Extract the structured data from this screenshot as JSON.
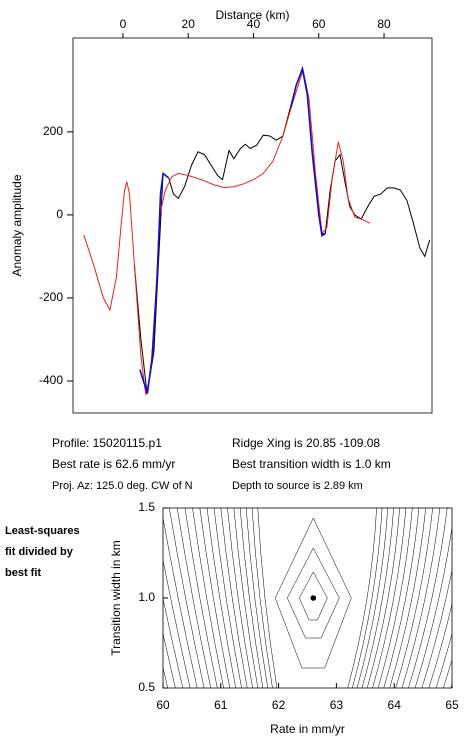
{
  "chart_data": [
    {
      "type": "line",
      "xlabel": "Distance (km)",
      "ylabel": "Anomaly amplitude",
      "xlim": [
        -15.3,
        94.7
      ],
      "ylim": [
        -477,
        426
      ],
      "xticks": [
        0,
        20,
        40,
        60,
        80
      ],
      "yticks": [
        -400,
        -200,
        0,
        200
      ],
      "series": [
        {
          "color": "#000000",
          "x": [
            3.5,
            5.5,
            7.4,
            9.5,
            11,
            12.3,
            14,
            15.5,
            17,
            19,
            21,
            23,
            25,
            27,
            29,
            30.5,
            32.5,
            34,
            36,
            37.5,
            39,
            41,
            43,
            45,
            47,
            49,
            51,
            53,
            55,
            56.5,
            58,
            60,
            61,
            62,
            63.5,
            65,
            66.5,
            68,
            69.5,
            71,
            73,
            75,
            77,
            79,
            81,
            83,
            85,
            87,
            89,
            91,
            92.5,
            94
          ],
          "values": [
            -120,
            -300,
            -430,
            -330,
            -100,
            100,
            90,
            50,
            40,
            70,
            120,
            152,
            145,
            120,
            95,
            85,
            155,
            135,
            160,
            170,
            160,
            168,
            192,
            190,
            180,
            190,
            250,
            310,
            352,
            290,
            150,
            20,
            -45,
            -45,
            60,
            130,
            145,
            80,
            20,
            0,
            -10,
            20,
            45,
            50,
            65,
            65,
            60,
            35,
            -20,
            -80,
            -100,
            -60
          ]
        },
        {
          "color": "#e8231f",
          "x": [
            -12,
            -9,
            -6,
            -4,
            -2,
            -0.5,
            0.5,
            1.2,
            2,
            3.5,
            5.5,
            7,
            8.5,
            10,
            11.3,
            13,
            15,
            17,
            20,
            24,
            28,
            31,
            34,
            37,
            40,
            43,
            46,
            49,
            52,
            55.2,
            57,
            59,
            61,
            62.5,
            64,
            66,
            67.5,
            69,
            71,
            73,
            75.7
          ],
          "values": [
            -48,
            -120,
            -200,
            -229,
            -150,
            -20,
            60,
            80,
            50,
            -120,
            -340,
            -434,
            -380,
            -200,
            0,
            60,
            92,
            100,
            95,
            85,
            72,
            66,
            68,
            75,
            85,
            100,
            130,
            190,
            270,
            349,
            280,
            100,
            -45,
            -30,
            80,
            176,
            130,
            40,
            -5,
            -10,
            -20
          ]
        },
        {
          "color": "#1010d0",
          "x": [
            5.2,
            7.5,
            9,
            10.5,
            11.5,
            12.3,
            13.8,
            null,
            51.5,
            53,
            55,
            56.5,
            58,
            60,
            61,
            62
          ],
          "values": [
            -373,
            -430,
            -340,
            -150,
            50,
            100,
            90,
            null,
            260,
            310,
            352,
            290,
            150,
            0,
            -50,
            -45
          ]
        }
      ]
    },
    {
      "type": "contour",
      "xlabel": "Rate in mm/yr",
      "ylabel": "Transition width in km",
      "xlim": [
        60,
        65
      ],
      "ylim": [
        0.5,
        1.5
      ],
      "xticks": [
        60,
        61,
        62,
        63,
        64,
        65
      ],
      "yticks": [
        0.5,
        {
          "value": 1.0,
          "label": "1.0"
        },
        1.5
      ],
      "best_fit": {
        "x": 62.6,
        "y": 1.0
      },
      "color": "#000000"
    }
  ],
  "info": [
    "Profile: 15020115.p1",
    "Ridge Xing is 20.85 -109.08",
    "Best rate is 62.6 mm/yr",
    "Best transition width is 1.0 km",
    "Proj. Az: 125.0 deg. CW of N",
    "Depth to source is   2.89 km"
  ],
  "note": [
    "Least-squares",
    "fit divided by",
    "best fit"
  ]
}
